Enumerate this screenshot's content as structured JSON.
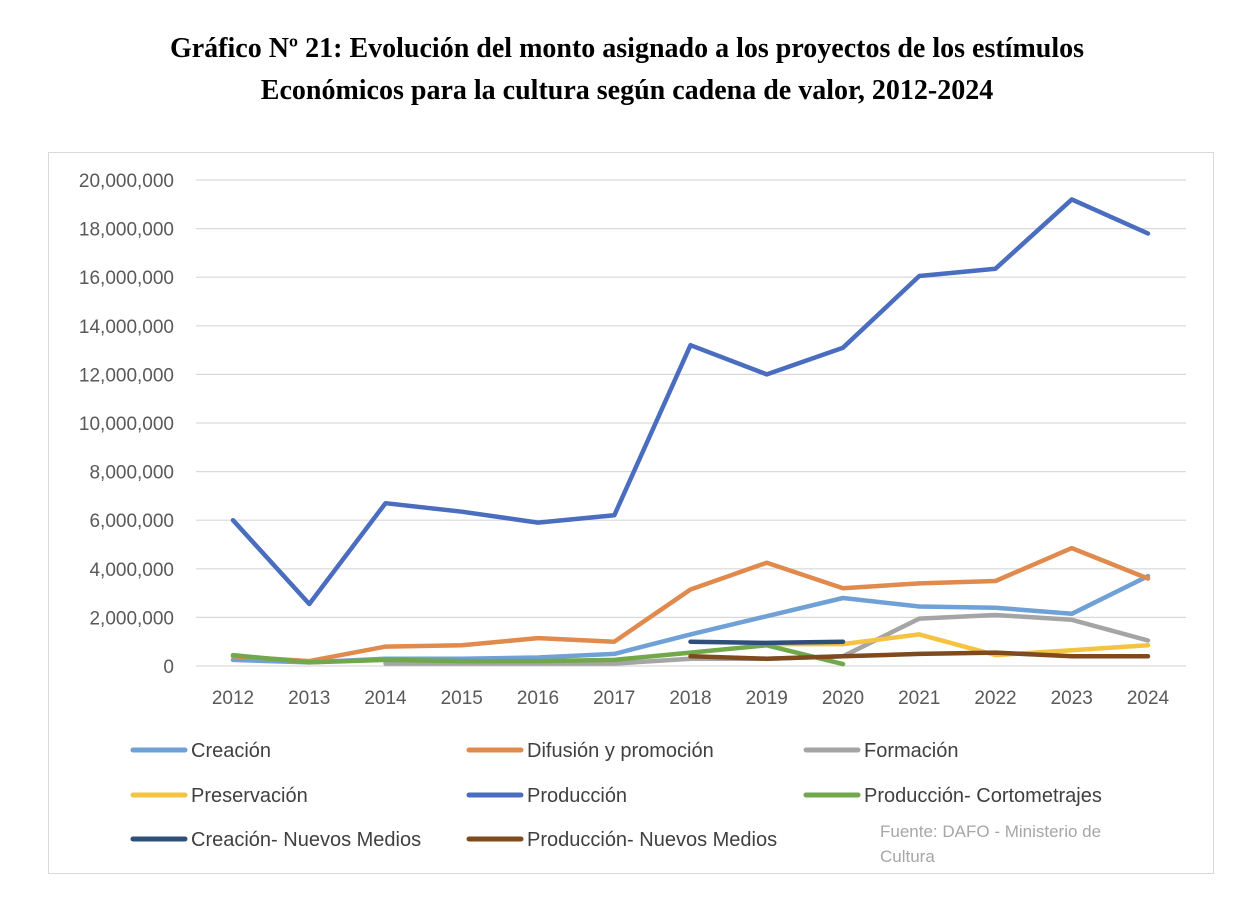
{
  "chart_data": {
    "type": "line",
    "title_line1": "Gráfico Nº 21: Evolución del monto asignado a los proyectos de los estímulos",
    "title_line2": "Económicos para la cultura según cadena de valor, 2012-2024",
    "x": [
      "2012",
      "2013",
      "2014",
      "2015",
      "2016",
      "2017",
      "2018",
      "2019",
      "2020",
      "2021",
      "2022",
      "2023",
      "2024"
    ],
    "y_ticks": [
      "0",
      "2,000,000",
      "4,000,000",
      "6,000,000",
      "8,000,000",
      "10,000,000",
      "12,000,000",
      "14,000,000",
      "16,000,000",
      "18,000,000",
      "20,000,000"
    ],
    "ylim": [
      0,
      20000000
    ],
    "grid": true,
    "legend_position": "bottom",
    "source_line1": "Fuente: DAFO - Ministerio de",
    "source_line2": "Cultura",
    "series": [
      {
        "name": "Creación",
        "color": "#6fa0d6",
        "values": [
          250000,
          150000,
          300000,
          300000,
          350000,
          500000,
          1300000,
          2050000,
          2800000,
          2450000,
          2400000,
          2150000,
          3700000
        ]
      },
      {
        "name": "Difusión y promoción",
        "color": "#e08a4d",
        "values": [
          400000,
          200000,
          800000,
          850000,
          1150000,
          1000000,
          3150000,
          4250000,
          3200000,
          3400000,
          3500000,
          4850000,
          3600000
        ]
      },
      {
        "name": "Formación",
        "color": "#a5a5a5",
        "values": [
          null,
          null,
          100000,
          100000,
          100000,
          100000,
          300000,
          300000,
          400000,
          1950000,
          2100000,
          1900000,
          1050000
        ]
      },
      {
        "name": "Preservación",
        "color": "#f5c342",
        "values": [
          null,
          null,
          null,
          null,
          null,
          null,
          null,
          900000,
          900000,
          1300000,
          450000,
          650000,
          850000
        ]
      },
      {
        "name": "Producción",
        "color": "#4a6dbf",
        "values": [
          6000000,
          2550000,
          6700000,
          6350000,
          5900000,
          6200000,
          13200000,
          12000000,
          13100000,
          16050000,
          16350000,
          19200000,
          17800000
        ]
      },
      {
        "name": "Producción- Cortometrajes",
        "color": "#72a84c",
        "values": [
          450000,
          150000,
          250000,
          200000,
          200000,
          250000,
          550000,
          850000,
          80000,
          null,
          null,
          null,
          null
        ]
      },
      {
        "name": "Creación- Nuevos Medios",
        "color": "#2f4f7a",
        "values": [
          null,
          null,
          null,
          null,
          null,
          null,
          1000000,
          950000,
          1000000,
          null,
          null,
          null,
          null
        ]
      },
      {
        "name": "Producción- Nuevos Medios",
        "color": "#7e4a1e",
        "values": [
          null,
          null,
          null,
          null,
          null,
          null,
          400000,
          300000,
          400000,
          500000,
          550000,
          400000,
          400000
        ]
      }
    ]
  }
}
